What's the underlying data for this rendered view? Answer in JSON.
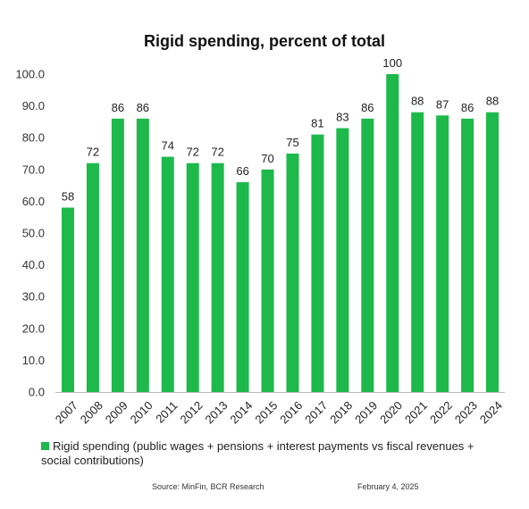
{
  "chart_data": {
    "type": "bar",
    "title": "Rigid spending, percent of total",
    "categories": [
      "2007",
      "2008",
      "2009",
      "2010",
      "2011",
      "2012",
      "2013",
      "2014",
      "2015",
      "2016",
      "2017",
      "2018",
      "2019",
      "2020",
      "2021",
      "2022",
      "2023",
      "2024"
    ],
    "series": [
      {
        "name": "Rigid spending (public wages + pensions + interest payments vs fiscal revenues + social contributions)",
        "values": [
          58,
          72,
          86,
          86,
          74,
          72,
          72,
          66,
          70,
          75,
          81,
          83,
          86,
          100,
          88,
          87,
          86,
          88
        ],
        "labels": [
          "58",
          "72",
          "86",
          "86",
          "74",
          "72",
          "72",
          "66",
          "70",
          "75",
          "81",
          "83",
          "86",
          "100",
          "88",
          "87",
          "86",
          "88"
        ],
        "color": "#1db94a"
      }
    ],
    "ylim": [
      0,
      100
    ],
    "yticks": [
      "0.0",
      "10.0",
      "20.0",
      "30.0",
      "40.0",
      "50.0",
      "60.0",
      "70.0",
      "80.0",
      "90.0",
      "100.0"
    ],
    "xlabel": "",
    "ylabel": "",
    "grid": false,
    "legend_position": "bottom-left"
  },
  "footer": {
    "source": "Source: MinFin, BCR Research",
    "date": "February 4, 2025"
  }
}
